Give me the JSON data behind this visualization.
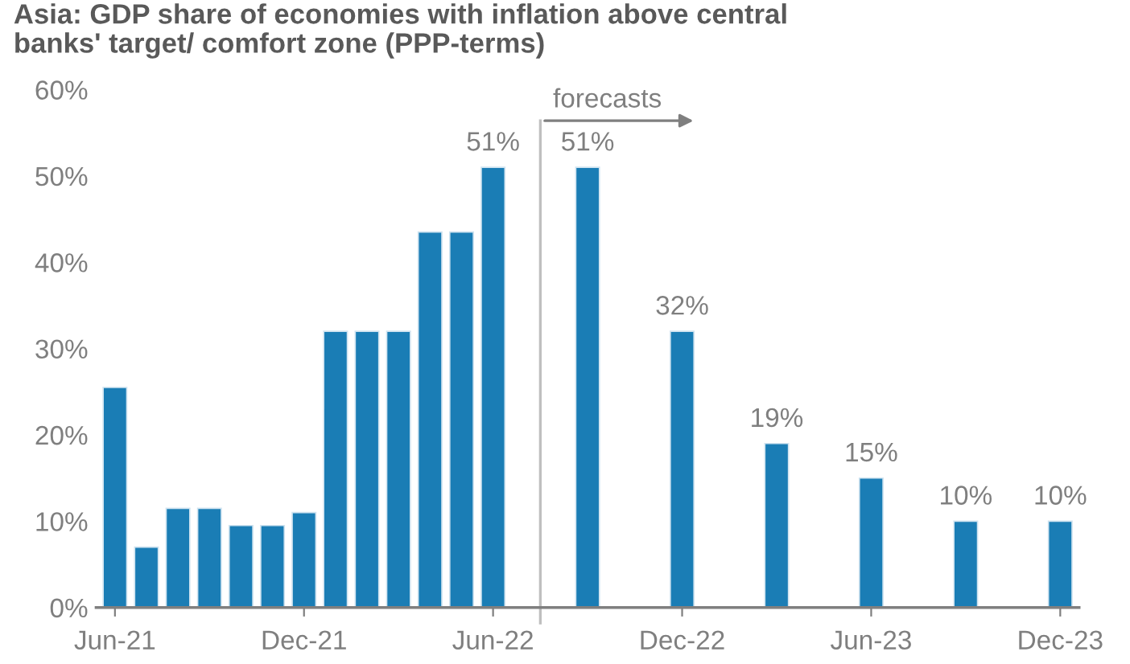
{
  "chart_data": {
    "type": "bar",
    "title": "Asia: GDP share of economies with inflation above central\nbanks' target/ comfort zone (PPP-terms)",
    "categories": [
      "Jun-21",
      null,
      null,
      null,
      null,
      null,
      "Dec-21",
      null,
      null,
      null,
      null,
      null,
      "Jun-22",
      null,
      null,
      null,
      null,
      null,
      "Dec-22",
      null,
      null,
      null,
      null,
      null,
      "Jun-23",
      null,
      null,
      null,
      null,
      null,
      "Dec-23"
    ],
    "values": [
      25.5,
      7,
      11.5,
      11.5,
      9.5,
      9.5,
      11,
      32,
      32,
      32,
      43.5,
      43.5,
      51,
      null,
      null,
      51,
      null,
      null,
      32,
      null,
      null,
      19,
      null,
      null,
      15,
      null,
      null,
      10,
      null,
      null,
      10
    ],
    "value_labels": [
      null,
      null,
      null,
      null,
      null,
      null,
      null,
      null,
      null,
      null,
      null,
      null,
      "51%",
      null,
      null,
      "51%",
      null,
      null,
      "32%",
      null,
      null,
      "19%",
      null,
      null,
      "15%",
      null,
      null,
      "10%",
      null,
      null,
      "10%"
    ],
    "color": "#1a7db5",
    "ylim": [
      0,
      60
    ],
    "yticks": [
      {
        "value": 0,
        "label": "0%"
      },
      {
        "value": 10,
        "label": "10%"
      },
      {
        "value": 20,
        "label": "20%"
      },
      {
        "value": 30,
        "label": "30%"
      },
      {
        "value": 40,
        "label": "40%"
      },
      {
        "value": 50,
        "label": "50%"
      },
      {
        "value": 60,
        "label": "60%"
      }
    ],
    "annotations": [
      "forecasts"
    ],
    "grid": false,
    "legend": false
  }
}
